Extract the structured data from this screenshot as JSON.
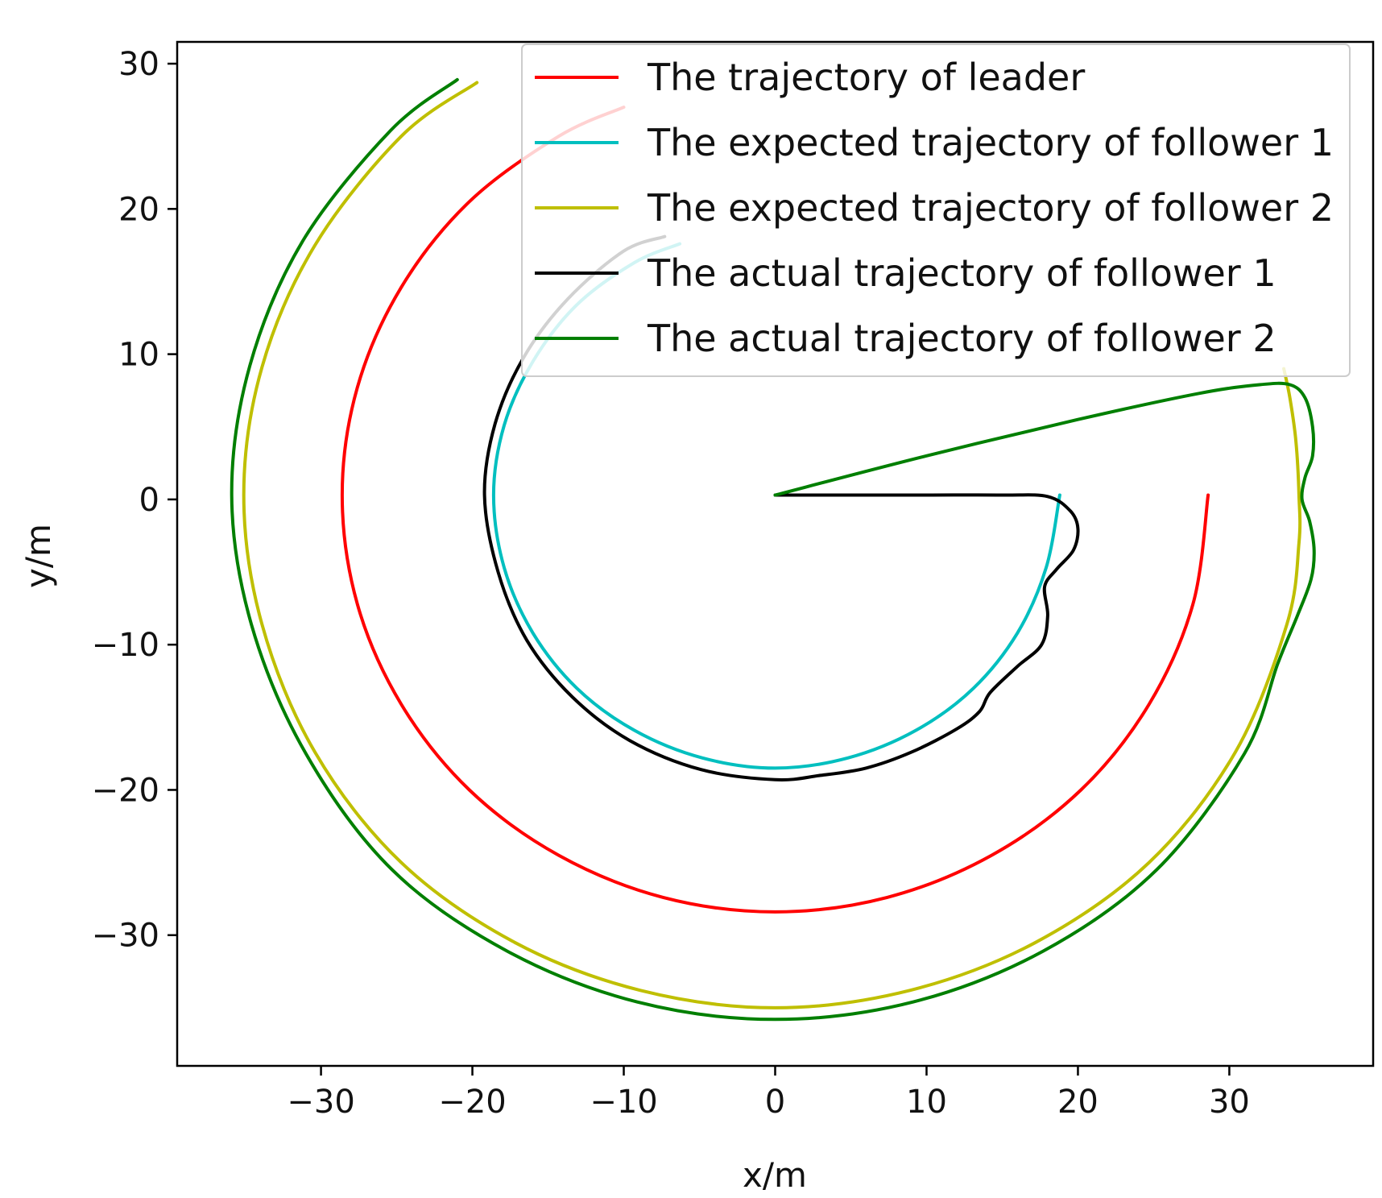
{
  "chart_data": {
    "type": "line",
    "title": "",
    "xlabel": "x/m",
    "ylabel": "y/m",
    "xlim": [
      -39.5,
      39.5
    ],
    "ylim": [
      -39,
      31.5
    ],
    "xticks": [
      -30,
      -20,
      -10,
      0,
      10,
      20,
      30
    ],
    "yticks": [
      -30,
      -20,
      -10,
      0,
      10,
      20,
      30
    ],
    "xtick_labels": [
      "−30",
      "−20",
      "−10",
      "0",
      "10",
      "20",
      "30"
    ],
    "ytick_labels": [
      "−30",
      "−20",
      "−10",
      "0",
      "10",
      "20",
      "30"
    ],
    "grid": false,
    "legend_position": "top-right",
    "series": [
      {
        "name": "The trajectory of leader",
        "color": "#ff0000",
        "x": [
          28.6,
          27.6,
          24.7,
          20.2,
          14.3,
          7.4,
          0,
          -7.4,
          -14.3,
          -20.2,
          -24.7,
          -27.6,
          -28.6,
          -27.6,
          -24.7,
          -20.2,
          -14.3,
          -10.0
        ],
        "y": [
          0.3,
          -7.2,
          -14.1,
          -20.0,
          -24.5,
          -27.4,
          -28.4,
          -27.4,
          -24.5,
          -20.0,
          -14.1,
          -7.2,
          0.3,
          7.7,
          14.6,
          20.5,
          25.0,
          27.0
        ]
      },
      {
        "name": "The expected trajectory of follower 1",
        "color": "#00bfbf",
        "x": [
          18.8,
          17.9,
          16.0,
          13.1,
          9.3,
          4.8,
          0,
          -4.8,
          -9.3,
          -13.1,
          -16.0,
          -17.9,
          -18.6,
          -17.9,
          -16.0,
          -13.1,
          -9.3,
          -6.3
        ],
        "y": [
          0.3,
          -4.7,
          -9.2,
          -13.0,
          -15.9,
          -17.8,
          -18.5,
          -17.8,
          -15.9,
          -13.0,
          -9.2,
          -4.7,
          0.3,
          5.1,
          9.5,
          13.4,
          16.3,
          17.6
        ]
      },
      {
        "name": "The expected trajectory of follower 2",
        "color": "#bfbf00",
        "x": [
          33.6,
          34.0,
          34.4,
          34.6,
          34.6,
          33.8,
          30.4,
          24.7,
          17.2,
          8.9,
          0,
          -8.9,
          -17.2,
          -24.7,
          -30.4,
          -33.9,
          -35.1,
          -33.9,
          -30.4,
          -24.7,
          -19.7
        ],
        "y": [
          9.0,
          7.0,
          4.0,
          0.3,
          -3.0,
          -8.6,
          -17.4,
          -25.0,
          -30.5,
          -33.8,
          -35.0,
          -33.8,
          -30.5,
          -25.0,
          -17.4,
          -8.6,
          0.3,
          9.1,
          17.5,
          25.0,
          28.7
        ]
      },
      {
        "name": "The actual trajectory of follower 1",
        "color": "#000000",
        "x": [
          0,
          5.0,
          10.0,
          15.0,
          18.0,
          19.5,
          20.0,
          19.7,
          18.6,
          17.8,
          18.0,
          17.6,
          16.0,
          14.2,
          13.5,
          12.0,
          9.0,
          6.0,
          3.0,
          0,
          -4.9,
          -9.6,
          -13.4,
          -16.4,
          -18.3,
          -19.2,
          -18.5,
          -16.6,
          -13.7,
          -10.0,
          -7.3
        ],
        "y": [
          0.3,
          0.3,
          0.3,
          0.3,
          0.2,
          -0.8,
          -2.0,
          -3.5,
          -4.8,
          -6.0,
          -8.0,
          -10.0,
          -11.5,
          -13.3,
          -14.6,
          -15.8,
          -17.4,
          -18.5,
          -19.0,
          -19.3,
          -18.6,
          -16.6,
          -13.6,
          -9.7,
          -5.0,
          0.3,
          5.2,
          9.8,
          13.8,
          17.1,
          18.1
        ]
      },
      {
        "name": "The actual trajectory of follower 2",
        "color": "#007f00",
        "x": [
          0,
          10.0,
          20.0,
          28.0,
          32.0,
          34.0,
          35.0,
          35.5,
          35.5,
          35.0,
          34.8,
          35.3,
          35.6,
          35.4,
          34.5,
          33.2,
          31.0,
          25.2,
          17.7,
          9.1,
          0,
          -9.1,
          -17.7,
          -25.3,
          -31.0,
          -34.6,
          -35.9,
          -34.7,
          -31.2,
          -25.4,
          -21.0
        ],
        "y": [
          0.3,
          3.0,
          5.5,
          7.3,
          7.9,
          7.9,
          7.0,
          5.0,
          3.0,
          1.5,
          0,
          -1.5,
          -3.5,
          -5.5,
          -8.0,
          -11.3,
          -17.5,
          -25.5,
          -31.1,
          -34.6,
          -35.8,
          -34.6,
          -31.1,
          -25.5,
          -17.5,
          -8.6,
          0.3,
          9.2,
          17.8,
          25.4,
          28.9
        ]
      }
    ]
  }
}
